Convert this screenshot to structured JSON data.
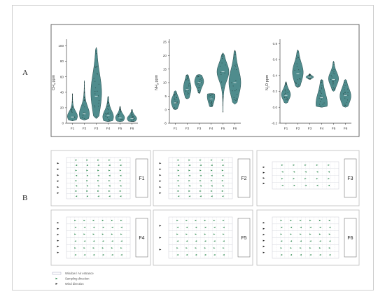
{
  "figure": {
    "panel_a_label": "A",
    "panel_b_label": "B"
  },
  "chart_data": [
    {
      "type": "violin",
      "ylabel": "CH4 ppm",
      "ylabel_main": "CH",
      "ylabel_sub": "4",
      "ylabel_unit": " ppm",
      "categories": [
        "F1",
        "F2",
        "F3",
        "F4",
        "F5",
        "F6"
      ],
      "yticks": [
        0,
        20,
        40,
        60,
        80,
        100
      ],
      "ylim": [
        0,
        105
      ],
      "series": [
        {
          "cat": "F1",
          "min": 3,
          "max": 38,
          "median": 8,
          "q1": 5,
          "q3": 13,
          "mode": 9,
          "width": 0.42
        },
        {
          "cat": "F2",
          "min": 4,
          "max": 55,
          "median": 12,
          "q1": 8,
          "q3": 20,
          "mode": 12,
          "width": 0.42
        },
        {
          "cat": "F3",
          "min": 6,
          "max": 98,
          "median": 35,
          "q1": 22,
          "q3": 52,
          "mode": 40,
          "width": 0.45
        },
        {
          "cat": "F4",
          "min": 2,
          "max": 35,
          "median": 10,
          "q1": 6,
          "q3": 16,
          "mode": 8,
          "width": 0.45
        },
        {
          "cat": "F5",
          "min": 2,
          "max": 22,
          "median": 7,
          "q1": 5,
          "q3": 11,
          "mode": 7,
          "width": 0.38
        },
        {
          "cat": "F6",
          "min": 2,
          "max": 18,
          "median": 6,
          "q1": 4,
          "q3": 9,
          "mode": 6,
          "width": 0.4
        }
      ]
    },
    {
      "type": "violin",
      "ylabel": "NH3 ppm",
      "ylabel_main": "NH",
      "ylabel_sub": "3",
      "ylabel_unit": " ppm",
      "categories": [
        "F1",
        "F2",
        "F3",
        "F4",
        "F5",
        "F6"
      ],
      "yticks": [
        -5,
        0,
        5,
        10,
        15,
        20,
        25
      ],
      "ylim": [
        -5,
        25
      ],
      "series": [
        {
          "cat": "F1",
          "min": 0,
          "max": 7,
          "median": 2.5,
          "q1": 1.5,
          "q3": 4,
          "mode": 3,
          "width": 0.35
        },
        {
          "cat": "F2",
          "min": 4,
          "max": 13,
          "median": 7.5,
          "q1": 6,
          "q3": 9.5,
          "mode": 8,
          "width": 0.32
        },
        {
          "cat": "F3",
          "min": 6,
          "max": 13,
          "median": 10,
          "q1": 8.5,
          "q3": 11,
          "mode": 10.5,
          "width": 0.38
        },
        {
          "cat": "F4",
          "min": 1,
          "max": 6,
          "median": 4,
          "q1": 2,
          "q3": 5,
          "mode": 5,
          "width": 0.32
        },
        {
          "cat": "F5",
          "min": -1,
          "max": 21,
          "median": 14,
          "q1": 12,
          "q3": 16,
          "mode": 14,
          "width": 0.5
        },
        {
          "cat": "F6",
          "min": 2,
          "max": 22,
          "median": 10,
          "q1": 7,
          "q3": 13,
          "mode": 10,
          "width": 0.5
        }
      ]
    },
    {
      "type": "violin",
      "ylabel": "N2O ppm",
      "ylabel_main": "N",
      "ylabel_sub": "2",
      "ylabel_unit": "O ppm",
      "categories": [
        "F1",
        "F2",
        "F3",
        "F4",
        "F5",
        "F6"
      ],
      "yticks": [
        -0.2,
        0.0,
        0.2,
        0.4,
        0.6,
        0.8
      ],
      "ylim": [
        -0.2,
        0.82
      ],
      "series": [
        {
          "cat": "F1",
          "min": 0.05,
          "max": 0.32,
          "median": 0.15,
          "q1": 0.12,
          "q3": 0.2,
          "mode": 0.16,
          "width": 0.38
        },
        {
          "cat": "F2",
          "min": 0.25,
          "max": 0.72,
          "median": 0.42,
          "q1": 0.35,
          "q3": 0.5,
          "mode": 0.44,
          "width": 0.45
        },
        {
          "cat": "F3",
          "min": 0.35,
          "max": 0.42,
          "median": 0.38,
          "q1": 0.37,
          "q3": 0.39,
          "mode": 0.38,
          "width": 0.32
        },
        {
          "cat": "F4",
          "min": 0.0,
          "max": 0.35,
          "median": 0.12,
          "q1": 0.04,
          "q3": 0.2,
          "mode": 0.04,
          "width": 0.48
        },
        {
          "cat": "F5",
          "min": 0.2,
          "max": 0.58,
          "median": 0.35,
          "q1": 0.3,
          "q3": 0.4,
          "mode": 0.36,
          "width": 0.42
        },
        {
          "cat": "F6",
          "min": 0.0,
          "max": 0.35,
          "median": 0.15,
          "q1": 0.08,
          "q3": 0.2,
          "mode": 0.14,
          "width": 0.46
        }
      ]
    }
  ],
  "farms": [
    {
      "label": "F1",
      "layout": "grid",
      "rows": 8,
      "arrows_per_row": 5,
      "wind_arrows": 6
    },
    {
      "label": "F2",
      "layout": "grid",
      "rows": 8,
      "arrows_per_row": 5,
      "wind_arrows": 6
    },
    {
      "label": "F3",
      "layout": "grid",
      "rows": 4,
      "arrows_per_row": 5,
      "wind_arrows": 4
    },
    {
      "label": "F4",
      "layout": "grid",
      "rows": 6,
      "arrows_per_row": 6,
      "wind_arrows": 6
    },
    {
      "label": "F5",
      "layout": "grid",
      "rows": 6,
      "arrows_per_row": 6,
      "wind_arrows": 3
    },
    {
      "label": "F6",
      "layout": "grid",
      "rows": 6,
      "arrows_per_row": 6,
      "wind_arrows": 6
    }
  ],
  "legend": {
    "items": [
      {
        "label": "Window / Air entrance",
        "kind": "window"
      },
      {
        "label": "Sampling direction",
        "kind": "sampling"
      },
      {
        "label": "Wind direction",
        "kind": "wind"
      }
    ]
  },
  "colors": {
    "violin_fill": "#4f8c8d",
    "violin_stroke": "#24494a",
    "violin_dot": "#1d2b2b",
    "sampling_arrow": "#2f8a50",
    "wind_arrow": "#1a1a1a",
    "frame": "#bdbdbd",
    "grid_line": "#c9cbd6"
  }
}
